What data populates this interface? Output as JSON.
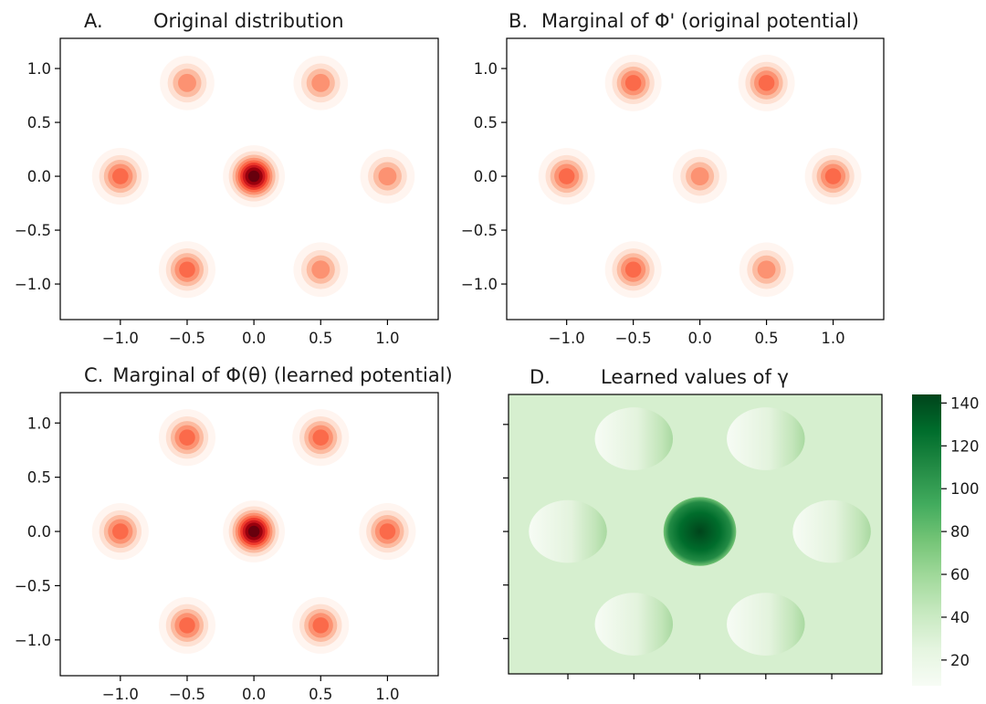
{
  "chart_data": [
    {
      "type": "contour",
      "panel_letter": "A.",
      "title": "Original distribution",
      "xticks": [
        "−1.0",
        "−0.5",
        "0.0",
        "0.5",
        "1.0"
      ],
      "yticks": [
        "1.0",
        "0.5",
        "0.0",
        "−0.5",
        "−1.0"
      ],
      "xtick_values": [
        -1.0,
        -0.5,
        0.0,
        0.5,
        1.0
      ],
      "ytick_values": [
        1.0,
        0.5,
        0.0,
        -0.5,
        -1.0
      ],
      "xlim": [
        -1.45,
        1.38
      ],
      "ylim": [
        -1.33,
        1.28
      ],
      "colormap": "Reds",
      "modes": [
        {
          "x": 0.0,
          "y": 0.0,
          "intensity": 1.0
        },
        {
          "x": -0.5,
          "y": 0.866,
          "intensity": 0.4
        },
        {
          "x": 0.5,
          "y": 0.866,
          "intensity": 0.4
        },
        {
          "x": -1.0,
          "y": 0.0,
          "intensity": 0.5
        },
        {
          "x": 1.0,
          "y": 0.0,
          "intensity": 0.35
        },
        {
          "x": -0.5,
          "y": -0.866,
          "intensity": 0.5
        },
        {
          "x": 0.5,
          "y": -0.866,
          "intensity": 0.4
        }
      ]
    },
    {
      "type": "contour",
      "panel_letter": "B.",
      "title": "Marginal of Φ' (original potential)",
      "xticks": [
        "−1.0",
        "−0.5",
        "0.0",
        "0.5",
        "1.0"
      ],
      "yticks": [
        "1.0",
        "0.5",
        "0.0",
        "−0.5",
        "−1.0"
      ],
      "xtick_values": [
        -1.0,
        -0.5,
        0.0,
        0.5,
        1.0
      ],
      "ytick_values": [
        1.0,
        0.5,
        0.0,
        -0.5,
        -1.0
      ],
      "xlim": [
        -1.45,
        1.38
      ],
      "ylim": [
        -1.33,
        1.28
      ],
      "colormap": "Reds",
      "modes": [
        {
          "x": 0.0,
          "y": 0.0,
          "intensity": 0.4
        },
        {
          "x": -0.5,
          "y": 0.866,
          "intensity": 0.5
        },
        {
          "x": 0.5,
          "y": 0.866,
          "intensity": 0.5
        },
        {
          "x": -1.0,
          "y": 0.0,
          "intensity": 0.5
        },
        {
          "x": 1.0,
          "y": 0.0,
          "intensity": 0.5
        },
        {
          "x": -0.5,
          "y": -0.866,
          "intensity": 0.5
        },
        {
          "x": 0.5,
          "y": -0.866,
          "intensity": 0.4
        }
      ]
    },
    {
      "type": "contour",
      "panel_letter": "C.",
      "title": "Marginal of Φ(θ) (learned potential)",
      "xticks": [
        "−1.0",
        "−0.5",
        "0.0",
        "0.5",
        "1.0"
      ],
      "yticks": [
        "1.0",
        "0.5",
        "0.0",
        "−0.5",
        "−1.0"
      ],
      "xtick_values": [
        -1.0,
        -0.5,
        0.0,
        0.5,
        1.0
      ],
      "ytick_values": [
        1.0,
        0.5,
        0.0,
        -0.5,
        -1.0
      ],
      "xlim": [
        -1.45,
        1.38
      ],
      "ylim": [
        -1.33,
        1.28
      ],
      "colormap": "Reds",
      "modes": [
        {
          "x": 0.0,
          "y": 0.0,
          "intensity": 1.0
        },
        {
          "x": -0.5,
          "y": 0.866,
          "intensity": 0.55
        },
        {
          "x": 0.5,
          "y": 0.866,
          "intensity": 0.55
        },
        {
          "x": -1.0,
          "y": 0.0,
          "intensity": 0.45
        },
        {
          "x": 1.0,
          "y": 0.0,
          "intensity": 0.5
        },
        {
          "x": -0.5,
          "y": -0.866,
          "intensity": 0.5
        },
        {
          "x": 0.5,
          "y": -0.866,
          "intensity": 0.45
        }
      ]
    },
    {
      "type": "heatmap",
      "panel_letter": "D.",
      "title": "Learned values of γ",
      "colormap": "Greens",
      "xlim": [
        -1.45,
        1.38
      ],
      "ylim": [
        -1.33,
        1.28
      ],
      "xtick_values": [
        -1.0,
        -0.5,
        0.0,
        0.5,
        1.0
      ],
      "ytick_values": [
        1.0,
        0.5,
        0.0,
        -0.5,
        -1.0
      ],
      "background_value": 40,
      "colorbar": {
        "ticks": [
          "140",
          "120",
          "100",
          "80",
          "60",
          "40",
          "20"
        ],
        "tick_values": [
          140,
          120,
          100,
          80,
          60,
          40,
          20
        ],
        "range": [
          8,
          144
        ]
      },
      "regions": [
        {
          "x": 0.0,
          "y": 0.0,
          "value": 142
        },
        {
          "x": -0.5,
          "y": 0.866,
          "value": 20
        },
        {
          "x": 0.5,
          "y": 0.866,
          "value": 22
        },
        {
          "x": -1.0,
          "y": 0.0,
          "value": 15
        },
        {
          "x": 1.0,
          "y": 0.0,
          "value": 18
        },
        {
          "x": -0.5,
          "y": -0.866,
          "value": 18
        },
        {
          "x": 0.5,
          "y": -0.866,
          "value": 24
        }
      ]
    }
  ]
}
